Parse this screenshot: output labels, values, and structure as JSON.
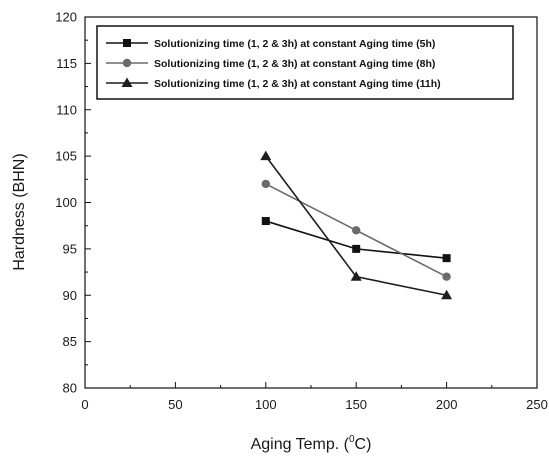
{
  "chart_data": {
    "type": "line",
    "title": "",
    "xlabel": "Aging Temp. (",
    "xlabel_sup": "0",
    "xlabel_suffix": "C)",
    "ylabel": "Hardness (BHN)",
    "xlim": [
      0,
      250
    ],
    "ylim": [
      80,
      120
    ],
    "x_ticks": [
      0,
      50,
      100,
      150,
      200,
      250
    ],
    "y_ticks": [
      80,
      85,
      90,
      95,
      100,
      105,
      110,
      115,
      120
    ],
    "grid": false,
    "legend_position": "top-left",
    "x": [
      100,
      150,
      200
    ],
    "series": [
      {
        "name": "Solutionizing time (1, 2 & 3h) at constant Aging time (5h)",
        "marker": "square",
        "color": "#111111",
        "values": [
          98,
          95,
          94
        ]
      },
      {
        "name": "Solutionizing time (1, 2 & 3h) at constant Aging time (8h)",
        "marker": "circle",
        "color": "#6b6b6b",
        "values": [
          102,
          97,
          92
        ]
      },
      {
        "name": "Solutionizing time (1, 2 & 3h) at constant Aging time (11h)",
        "marker": "triangle",
        "color": "#1e1e1e",
        "values": [
          105,
          92,
          90
        ]
      }
    ]
  }
}
